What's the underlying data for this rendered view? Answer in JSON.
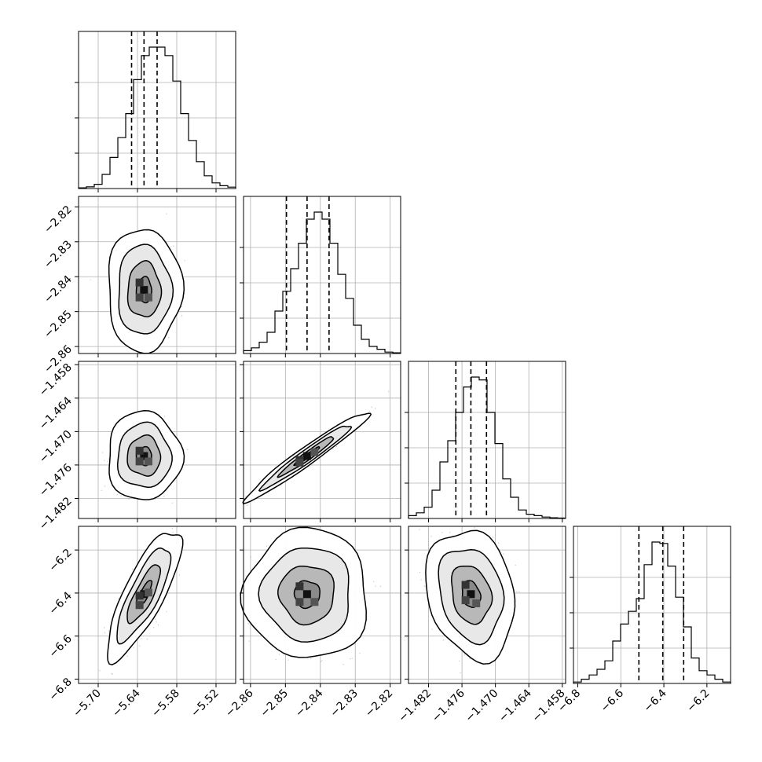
{
  "chart_data": {
    "type": "corner",
    "parameters": 4,
    "colors": {
      "line": "#000000",
      "grid": "#b0b0b0",
      "points": "#9a9a9a",
      "background": "#ffffff"
    },
    "grid": true,
    "marginals": [
      {
        "range": [
          -5.73,
          -5.49
        ],
        "quantiles": [
          -5.649,
          -5.63,
          -5.61
        ],
        "hist": [
          0.005,
          0.012,
          0.03,
          0.1,
          0.22,
          0.36,
          0.53,
          0.77,
          0.94,
          1.0,
          1.0,
          0.94,
          0.76,
          0.53,
          0.34,
          0.19,
          0.09,
          0.04,
          0.02,
          0.01
        ],
        "tick_values": [
          -5.7,
          -5.64,
          -5.58,
          -5.52
        ],
        "tick_labels": [
          "−5.70",
          "−5.64",
          "−5.58",
          "−5.52"
        ]
      },
      {
        "range": [
          -2.862,
          -2.817
        ],
        "quantiles": [
          -2.8497,
          -2.8438,
          -2.8375
        ],
        "hist": [
          0.02,
          0.04,
          0.08,
          0.15,
          0.3,
          0.44,
          0.6,
          0.78,
          0.95,
          1.0,
          0.95,
          0.78,
          0.56,
          0.39,
          0.2,
          0.1,
          0.05,
          0.03,
          0.01,
          0.005
        ],
        "tick_values": [
          -2.86,
          -2.85,
          -2.84,
          -2.83,
          -2.82
        ],
        "tick_labels": [
          "−2.86",
          "−2.85",
          "−2.84",
          "−2.83",
          "−2.82"
        ]
      },
      {
        "range": [
          -1.4856,
          -1.4574
        ],
        "quantiles": [
          -1.4771,
          -1.4744,
          -1.4716
        ],
        "hist": [
          0.02,
          0.04,
          0.08,
          0.2,
          0.4,
          0.55,
          0.75,
          0.93,
          1.0,
          0.98,
          0.75,
          0.53,
          0.28,
          0.15,
          0.06,
          0.03,
          0.02,
          0.01,
          0.005,
          0.003
        ],
        "tick_values": [
          -1.482,
          -1.476,
          -1.47,
          -1.464,
          -1.458
        ],
        "tick_labels": [
          "−1.482",
          "−1.476",
          "−1.470",
          "−1.464",
          "−1.458"
        ]
      },
      {
        "range": [
          -6.82,
          -6.09
        ],
        "quantiles": [
          -6.516,
          -6.405,
          -6.308
        ],
        "hist": [
          0.01,
          0.03,
          0.06,
          0.1,
          0.16,
          0.3,
          0.42,
          0.51,
          0.6,
          0.84,
          1.0,
          0.99,
          0.83,
          0.61,
          0.4,
          0.18,
          0.09,
          0.06,
          0.03,
          0.01
        ],
        "tick_values": [
          -6.8,
          -6.6,
          -6.4,
          -6.2
        ],
        "tick_labels": [
          "−6.8",
          "−6.6",
          "−6.4",
          "−6.2"
        ]
      }
    ],
    "correlations": {
      "1-0": 0.0,
      "2-0": 0.0,
      "2-1": 0.97,
      "3-0": 0.8,
      "3-1": 0.0,
      "3-2": -0.2
    }
  }
}
